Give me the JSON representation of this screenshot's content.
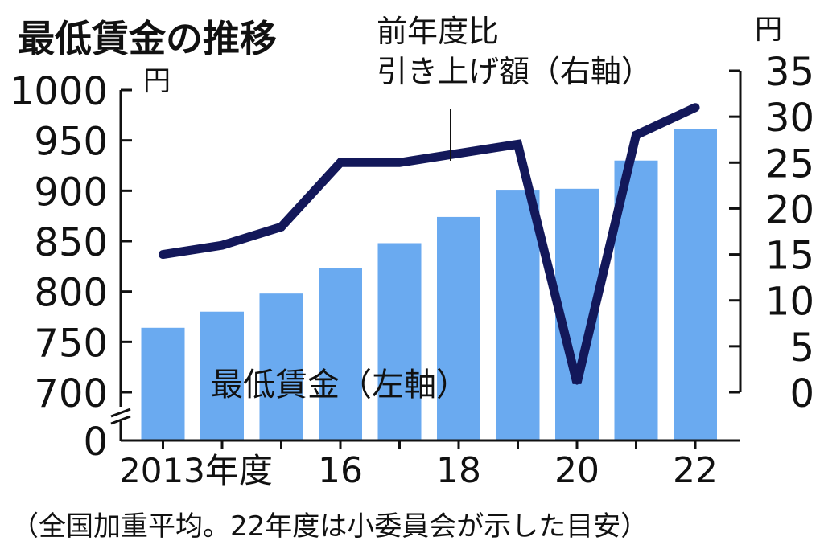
{
  "chart_data": {
    "type": "bar",
    "title": "最低賃金の推移",
    "categories": [
      "2013",
      "2014",
      "2015",
      "2016",
      "2017",
      "2018",
      "2019",
      "2020",
      "2021",
      "2022"
    ],
    "x_tick_labels": [
      {
        "index": 0,
        "text": "2013年度"
      },
      {
        "index": 3,
        "text": "16"
      },
      {
        "index": 5,
        "text": "18"
      },
      {
        "index": 7,
        "text": "20"
      },
      {
        "index": 9,
        "text": "22"
      }
    ],
    "left_axis": {
      "unit": "円",
      "ticks": [
        "1000",
        "950",
        "900",
        "850",
        "800",
        "750",
        "700",
        "0"
      ],
      "ylim": [
        700,
        1000
      ],
      "axis_break": true
    },
    "right_axis": {
      "unit": "円",
      "ticks": [
        "35",
        "30",
        "25",
        "20",
        "15",
        "10",
        "5",
        "0"
      ],
      "ylim": [
        0,
        35
      ]
    },
    "series": [
      {
        "name": "最低賃金（左軸）",
        "kind": "bar",
        "axis": "left",
        "color": "#6aaaf0",
        "values": [
          764,
          780,
          798,
          823,
          848,
          874,
          901,
          902,
          930,
          961
        ]
      },
      {
        "name_lines": [
          "前年度比",
          "引き上げ額（右軸）"
        ],
        "kind": "line",
        "axis": "right",
        "color": "#13185a",
        "values": [
          15,
          16,
          18,
          25,
          25,
          26,
          27,
          1,
          28,
          31
        ]
      }
    ],
    "footnote": "（全国加重平均。22年度は小委員会が示した目安）"
  }
}
